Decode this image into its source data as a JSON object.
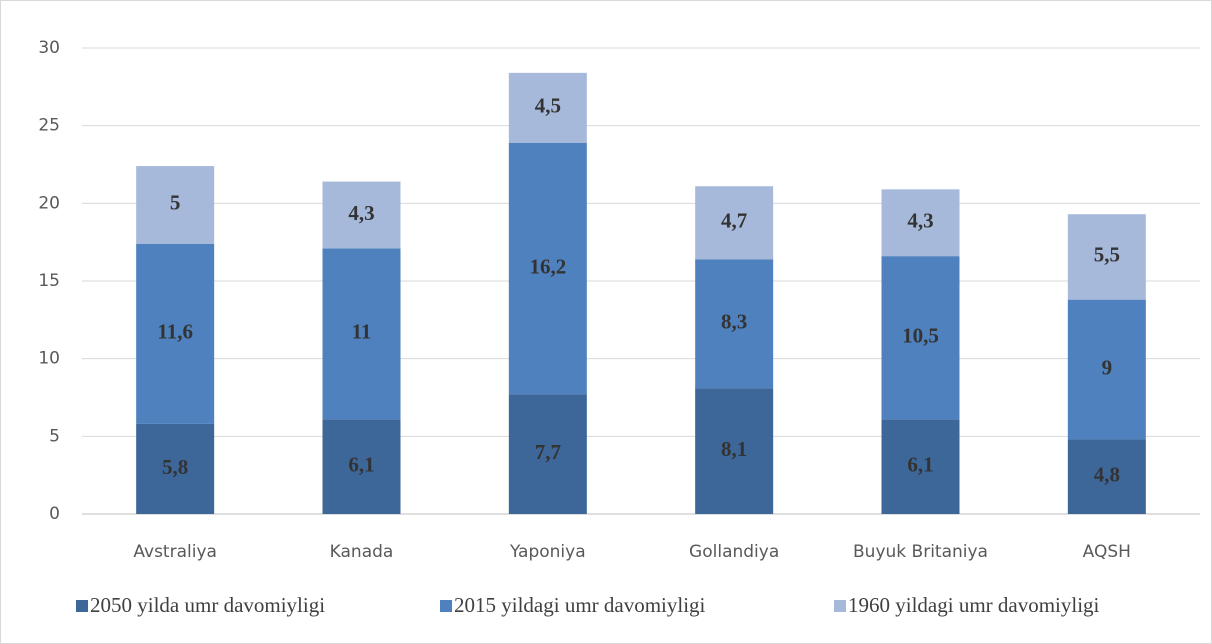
{
  "chart_data": {
    "type": "stacked_bar",
    "categories": [
      "Avstraliya",
      "Kanada",
      "Yaponiya",
      "Gollandiya",
      "Buyuk Britaniya",
      "AQSH"
    ],
    "series": [
      {
        "name": "2050 yilda umr davomiyligi",
        "color": "#3d6699",
        "values": [
          5.8,
          6.1,
          7.7,
          8.1,
          6.1,
          4.8
        ],
        "value_labels": [
          "5,8",
          "6,1",
          "7,7",
          "8,1",
          "6,1",
          "4,8"
        ]
      },
      {
        "name": "2015 yildagi umr davomiyligi",
        "color": "#4e81bd",
        "values": [
          11.6,
          11,
          16.2,
          8.3,
          10.5,
          9
        ],
        "value_labels": [
          "11,6",
          "11",
          "16,2",
          "8,3",
          "10,5",
          "9"
        ]
      },
      {
        "name": "1960 yildagi umr davomiyligi",
        "color": "#a7b9da",
        "values": [
          5,
          4.3,
          4.5,
          4.7,
          4.3,
          5.5
        ],
        "value_labels": [
          "5",
          "4,3",
          "4,5",
          "4,7",
          "4,3",
          "5,5"
        ]
      }
    ],
    "ylim": [
      0,
      30
    ],
    "yticks": [
      0,
      5,
      10,
      15,
      20,
      25,
      30
    ],
    "grid": true,
    "legend": "bottom"
  }
}
